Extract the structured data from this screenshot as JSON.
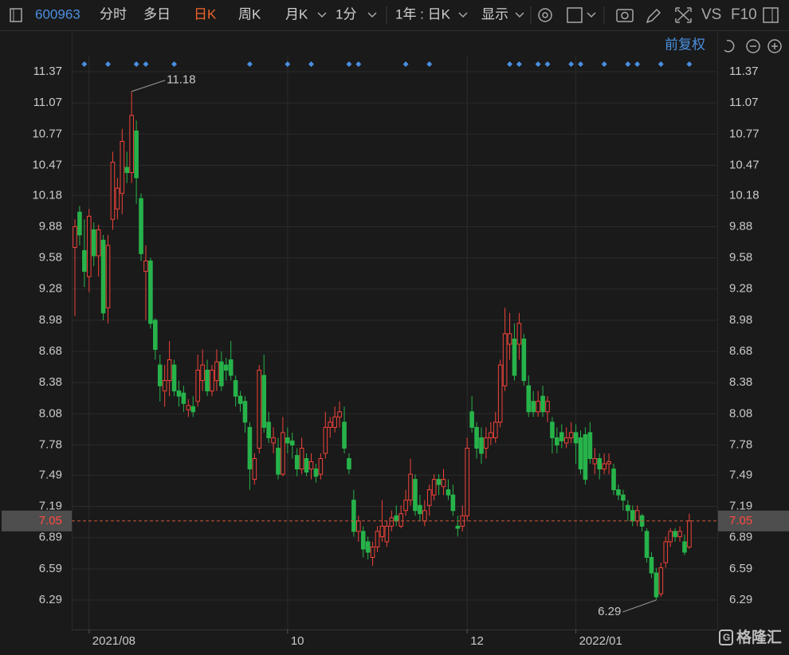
{
  "toolbar": {
    "code": "600963",
    "tabs": [
      "分时",
      "多日",
      "日K",
      "周K",
      "月K",
      "1分"
    ],
    "range": "1年 : 日K",
    "display": "显示",
    "vs": "VS",
    "f10": "F10"
  },
  "adjust": "前复权",
  "watermark": "格隆汇",
  "chart_data": {
    "type": "candlestick",
    "up_color": "#f0433a",
    "down_color": "#27b34a",
    "grid": true,
    "ylim": [
      6.0,
      11.52
    ],
    "yticks": [
      11.37,
      11.07,
      10.77,
      10.47,
      10.18,
      9.88,
      9.58,
      9.28,
      8.98,
      8.68,
      8.38,
      8.08,
      7.78,
      7.49,
      7.19,
      6.89,
      6.59,
      6.29
    ],
    "categories": [
      null,
      null,
      null,
      "2021/08",
      null,
      null,
      null,
      null,
      null,
      null,
      null,
      null,
      null,
      null,
      null,
      null,
      null,
      null,
      null,
      null,
      null,
      null,
      null,
      null,
      null,
      null,
      null,
      null,
      null,
      null,
      null,
      null,
      null,
      null,
      null,
      null,
      null,
      null,
      null,
      null,
      null,
      null,
      null,
      null,
      null,
      "10",
      null,
      null,
      null,
      null,
      null,
      null,
      null,
      null,
      null,
      null,
      null,
      null,
      null,
      null,
      null,
      null,
      null,
      null,
      null,
      null,
      null,
      null,
      null,
      null,
      null,
      null,
      null,
      null,
      null,
      null,
      null,
      null,
      null,
      null,
      null,
      null,
      null,
      "12",
      null,
      null,
      null,
      null,
      null,
      null,
      null,
      null,
      null,
      null,
      null,
      null,
      null,
      null,
      null,
      null,
      null,
      null,
      null,
      null,
      null,
      null,
      "2022/01",
      null,
      null,
      null,
      null,
      null,
      null,
      null,
      null,
      null,
      null,
      null,
      null,
      null,
      null,
      null,
      null,
      null,
      null,
      null,
      null,
      null,
      null,
      null,
      null
    ],
    "open": [
      9.68,
      10.02,
      9.65,
      9.4,
      9.85,
      9.6,
      9.75,
      9.1,
      9.95,
      10.05,
      10.2,
      10.45,
      10.4,
      10.8,
      10.15,
      9.45,
      9.55,
      8.98,
      8.55,
      8.3,
      8.4,
      8.55,
      8.3,
      8.28,
      8.12,
      8.15,
      8.2,
      8.4,
      8.5,
      8.3,
      8.4,
      8.58,
      8.55,
      8.6,
      8.4,
      8.25,
      8.2,
      7.95,
      7.45,
      7.75,
      8.45,
      8.0,
      7.8,
      7.75,
      7.5,
      7.85,
      7.82,
      7.68,
      7.55,
      7.65,
      7.55,
      7.55,
      7.5,
      7.7,
      7.95,
      7.95,
      8.05,
      8.0,
      7.65,
      7.25,
      6.95,
      6.95,
      6.85,
      6.7,
      6.8,
      6.9,
      6.85,
      7.0,
      7.1,
      7.0,
      7.15,
      7.25,
      7.45,
      7.2,
      7.05,
      7.2,
      7.3,
      7.45,
      7.38,
      7.35,
      7.3,
      7.0,
      7.0,
      7.1,
      8.1,
      7.95,
      7.85,
      7.75,
      7.85,
      7.85,
      8.0,
      8.35,
      8.75,
      8.8,
      8.75,
      8.8,
      8.35,
      8.2,
      8.1,
      8.25,
      8.1,
      8.0,
      7.85,
      7.9,
      7.8,
      7.85,
      7.9,
      7.85,
      7.88,
      7.9,
      7.6,
      7.65,
      7.55,
      7.6,
      7.55,
      7.35,
      7.3,
      7.2,
      7.15,
      7.05,
      7.1,
      6.95,
      6.7,
      6.55,
      6.35,
      6.65,
      6.85,
      6.95,
      6.9,
      6.85,
      6.8
    ],
    "high": [
      9.95,
      10.08,
      9.95,
      10.05,
      9.92,
      9.9,
      9.8,
      9.8,
      10.6,
      10.35,
      10.82,
      10.6,
      11.18,
      10.9,
      10.2,
      9.7,
      9.58,
      9.0,
      8.65,
      8.55,
      8.78,
      8.6,
      8.4,
      8.35,
      8.22,
      8.25,
      8.65,
      8.7,
      8.6,
      8.55,
      8.7,
      8.68,
      8.62,
      8.78,
      8.45,
      8.3,
      8.25,
      8.0,
      7.7,
      8.55,
      8.65,
      8.1,
      7.95,
      7.85,
      8.05,
      7.95,
      7.9,
      7.75,
      7.85,
      7.7,
      7.7,
      7.6,
      7.7,
      8.1,
      8.05,
      8.15,
      8.2,
      8.15,
      7.7,
      7.35,
      7.1,
      7.0,
      6.9,
      6.85,
      7.0,
      7.25,
      7.05,
      7.15,
      7.2,
      7.2,
      7.35,
      7.65,
      7.5,
      7.3,
      7.25,
      7.4,
      7.5,
      7.5,
      7.55,
      7.45,
      7.4,
      7.1,
      7.2,
      7.85,
      8.25,
      8.0,
      7.95,
      7.95,
      8.0,
      8.1,
      8.6,
      9.1,
      9.05,
      8.95,
      9.05,
      8.85,
      8.45,
      8.3,
      8.3,
      8.35,
      8.25,
      8.05,
      7.95,
      7.98,
      7.95,
      8.0,
      7.98,
      7.92,
      7.95,
      8.0,
      7.75,
      7.7,
      7.7,
      7.7,
      7.6,
      7.4,
      7.35,
      7.25,
      7.2,
      7.2,
      7.12,
      6.98,
      6.75,
      6.6,
      6.65,
      6.9,
      6.98,
      6.98,
      7.0,
      6.92,
      7.12
    ],
    "low": [
      9.02,
      9.7,
      9.3,
      9.25,
      9.5,
      9.4,
      8.98,
      8.95,
      9.85,
      9.95,
      10.0,
      10.3,
      10.3,
      10.1,
      9.55,
      8.98,
      8.9,
      8.6,
      8.2,
      8.15,
      8.25,
      8.25,
      8.15,
      8.1,
      8.05,
      8.05,
      8.15,
      8.3,
      8.25,
      8.25,
      8.3,
      8.3,
      8.4,
      8.4,
      8.15,
      8.1,
      7.9,
      7.35,
      7.4,
      7.7,
      7.9,
      7.8,
      7.7,
      7.45,
      7.48,
      7.7,
      7.65,
      7.48,
      7.5,
      7.48,
      7.45,
      7.42,
      7.45,
      7.65,
      7.85,
      7.9,
      7.95,
      7.7,
      7.5,
      6.9,
      6.85,
      6.7,
      6.68,
      6.62,
      6.75,
      6.85,
      6.8,
      6.95,
      7.0,
      6.98,
      7.1,
      7.2,
      7.1,
      7.05,
      7.0,
      7.1,
      7.25,
      7.3,
      7.3,
      7.25,
      7.1,
      6.9,
      6.95,
      7.05,
      7.9,
      7.65,
      7.6,
      7.65,
      7.78,
      7.8,
      7.95,
      8.3,
      8.6,
      8.4,
      8.6,
      8.35,
      8.05,
      8.05,
      8.05,
      8.05,
      8.0,
      7.7,
      7.7,
      7.75,
      7.75,
      7.8,
      7.6,
      7.5,
      7.4,
      7.6,
      7.5,
      7.45,
      7.5,
      7.5,
      7.3,
      7.25,
      7.15,
      7.05,
      7.0,
      7.0,
      6.95,
      6.65,
      6.5,
      6.29,
      6.32,
      6.6,
      6.8,
      6.85,
      6.85,
      6.72,
      6.78
    ],
    "close": [
      9.88,
      9.8,
      9.45,
      9.98,
      9.6,
      9.85,
      9.05,
      9.7,
      10.5,
      10.25,
      10.7,
      10.4,
      10.95,
      10.35,
      9.62,
      9.55,
      8.95,
      8.7,
      8.35,
      8.4,
      8.6,
      8.3,
      8.25,
      8.18,
      8.16,
      8.1,
      8.5,
      8.55,
      8.3,
      8.5,
      8.58,
      8.35,
      8.5,
      8.45,
      8.25,
      8.18,
      8.0,
      7.55,
      7.65,
      8.5,
      7.95,
      7.85,
      7.85,
      7.5,
      7.9,
      7.8,
      7.78,
      7.55,
      7.75,
      7.52,
      7.62,
      7.48,
      7.65,
      7.95,
      8.0,
      8.05,
      8.1,
      7.75,
      7.55,
      6.95,
      7.05,
      6.78,
      6.75,
      6.8,
      6.95,
      7.0,
      7.0,
      7.08,
      7.05,
      7.12,
      7.25,
      7.5,
      7.15,
      7.12,
      7.15,
      7.35,
      7.45,
      7.4,
      7.45,
      7.3,
      7.15,
      6.98,
      7.1,
      7.75,
      7.95,
      7.75,
      7.7,
      7.85,
      7.9,
      8.0,
      8.55,
      8.85,
      8.85,
      8.45,
      8.95,
      8.4,
      8.1,
      8.1,
      8.2,
      8.1,
      8.2,
      7.85,
      7.78,
      7.82,
      7.85,
      7.9,
      7.8,
      7.55,
      7.45,
      7.65,
      7.65,
      7.55,
      7.6,
      7.62,
      7.35,
      7.3,
      7.25,
      7.15,
      7.05,
      7.15,
      7.0,
      6.7,
      6.55,
      6.32,
      6.6,
      6.85,
      6.95,
      6.9,
      6.95,
      6.75,
      7.05
    ],
    "events": [
      2,
      7,
      13,
      15,
      21,
      37,
      45,
      50,
      58,
      60,
      70,
      75,
      92,
      94,
      98,
      100,
      105,
      107,
      112,
      117,
      119,
      124,
      130
    ],
    "event_color": "#4a8fe0"
  }
}
